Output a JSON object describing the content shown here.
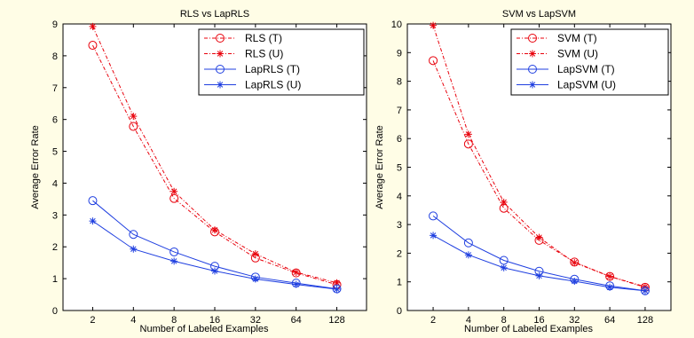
{
  "chart_data": [
    {
      "type": "line",
      "title": "RLS vs LapRLS",
      "xlabel": "Number of Labeled Examples",
      "ylabel": "Average Error Rate",
      "x": [
        2,
        4,
        8,
        16,
        32,
        64,
        128
      ],
      "x_scale": "log2",
      "xticks": [
        "2",
        "4",
        "8",
        "16",
        "32",
        "64",
        "128"
      ],
      "yticks": [
        "0",
        "1",
        "2",
        "3",
        "4",
        "5",
        "6",
        "7",
        "8",
        "9"
      ],
      "ylim": [
        0,
        9
      ],
      "legend_position": "top-right",
      "grid": false,
      "series": [
        {
          "name": "RLS (T)",
          "color": "#e8000b",
          "dash": true,
          "marker": "circle",
          "values": [
            8.33,
            5.78,
            3.52,
            2.47,
            1.65,
            1.18,
            0.81
          ]
        },
        {
          "name": "RLS (U)",
          "color": "#e8000b",
          "dash": true,
          "marker": "star",
          "values": [
            8.92,
            6.1,
            3.74,
            2.53,
            1.78,
            1.2,
            0.87
          ]
        },
        {
          "name": "LapRLS (T)",
          "color": "#1f3fe0",
          "dash": false,
          "marker": "circle",
          "values": [
            3.45,
            2.39,
            1.84,
            1.39,
            1.05,
            0.86,
            0.68
          ]
        },
        {
          "name": "LapRLS (U)",
          "color": "#1f3fe0",
          "dash": false,
          "marker": "star",
          "values": [
            2.81,
            1.93,
            1.55,
            1.24,
            0.99,
            0.82,
            0.67
          ]
        }
      ]
    },
    {
      "type": "line",
      "title": "SVM vs LapSVM",
      "xlabel": "Number of Labeled Examples",
      "ylabel": "Average Error Rate",
      "x": [
        2,
        4,
        8,
        16,
        32,
        64,
        128
      ],
      "x_scale": "log2",
      "xticks": [
        "2",
        "4",
        "8",
        "16",
        "32",
        "64",
        "128"
      ],
      "yticks": [
        "0",
        "1",
        "2",
        "3",
        "4",
        "5",
        "6",
        "7",
        "8",
        "9",
        "10"
      ],
      "ylim": [
        0,
        10
      ],
      "legend_position": "top-right",
      "grid": false,
      "series": [
        {
          "name": "SVM (T)",
          "color": "#e8000b",
          "dash": true,
          "marker": "circle",
          "values": [
            8.72,
            5.81,
            3.57,
            2.45,
            1.69,
            1.19,
            0.81
          ]
        },
        {
          "name": "SVM (U)",
          "color": "#e8000b",
          "dash": true,
          "marker": "star",
          "values": [
            9.95,
            6.15,
            3.78,
            2.55,
            1.67,
            1.19,
            0.83
          ]
        },
        {
          "name": "LapSVM (T)",
          "color": "#1f3fe0",
          "dash": false,
          "marker": "circle",
          "values": [
            3.3,
            2.36,
            1.75,
            1.37,
            1.09,
            0.86,
            0.69
          ]
        },
        {
          "name": "LapSVM (U)",
          "color": "#1f3fe0",
          "dash": false,
          "marker": "star",
          "values": [
            2.62,
            1.94,
            1.49,
            1.21,
            1.02,
            0.81,
            0.69
          ]
        }
      ]
    }
  ]
}
